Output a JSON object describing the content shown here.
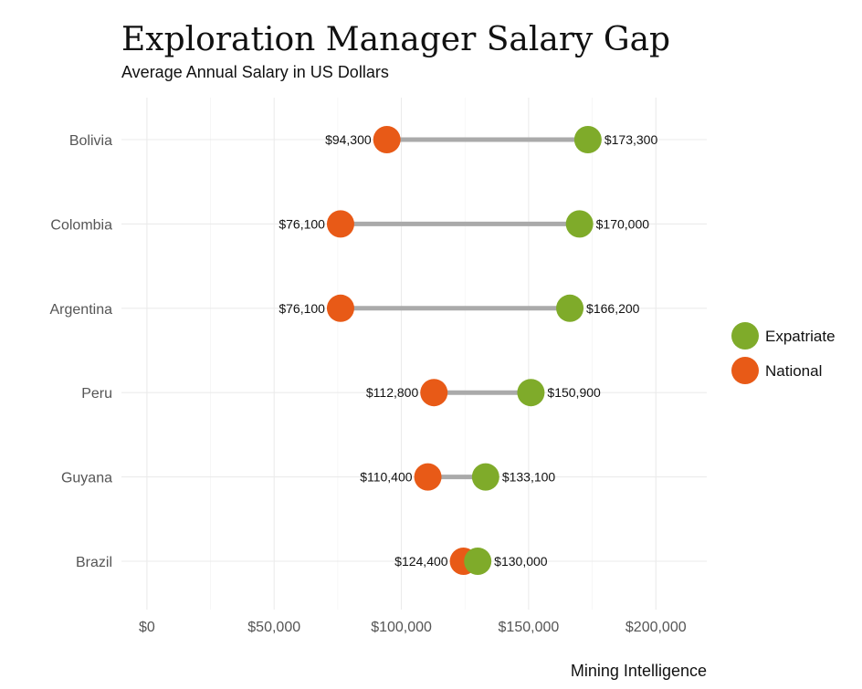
{
  "chart_data": {
    "type": "dumbbell",
    "title": "Exploration Manager Salary Gap",
    "subtitle": "Average Annual Salary in US Dollars",
    "caption": "Mining Intelligence",
    "xlabel": "",
    "ylabel": "",
    "xlim": [
      -10000,
      220000
    ],
    "x_ticks": [
      0,
      50000,
      100000,
      150000,
      200000
    ],
    "x_tick_labels": [
      "$0",
      "$50,000",
      "$100,000",
      "$150,000",
      "$200,000"
    ],
    "grid": true,
    "legend_position": "right",
    "categories": [
      "Bolivia",
      "Colombia",
      "Argentina",
      "Peru",
      "Guyana",
      "Brazil"
    ],
    "series": [
      {
        "name": "Expatriate",
        "color": "#7fab2a",
        "values": [
          173300,
          170000,
          166200,
          150900,
          133100,
          130000
        ],
        "labels": [
          "$173,300",
          "$170,000",
          "$166,200",
          "$150,900",
          "$133,100",
          "$130,000"
        ]
      },
      {
        "name": "National",
        "color": "#e85a17",
        "values": [
          94300,
          76100,
          76100,
          112800,
          110400,
          124400
        ],
        "labels": [
          "$94,300",
          "$76,100",
          "$76,100",
          "$112,800",
          "$110,400",
          "$124,400"
        ]
      }
    ],
    "connector_color": "#aaaaaa"
  }
}
